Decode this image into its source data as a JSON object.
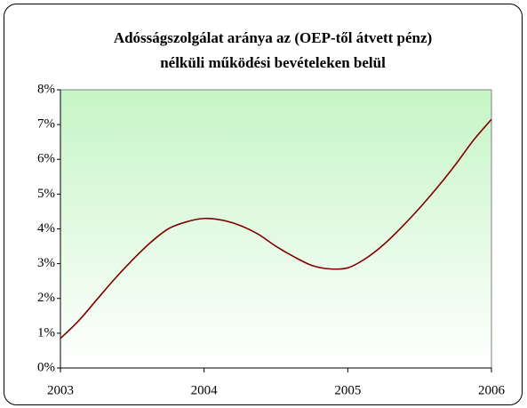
{
  "chart_data": {
    "type": "line",
    "title": [
      "Adósságszolgálat aránya az (OEP-től átvett pénz)",
      "nélküli működési bevételeken belül"
    ],
    "x": [
      2003,
      2003.125,
      2003.25,
      2003.375,
      2003.5,
      2003.625,
      2003.75,
      2003.875,
      2004,
      2004.125,
      2004.25,
      2004.375,
      2004.5,
      2004.625,
      2004.75,
      2004.875,
      2005,
      2005.125,
      2005.25,
      2005.375,
      2005.5,
      2005.625,
      2005.75,
      2005.875,
      2006
    ],
    "series": [
      {
        "color": "#800000",
        "values": [
          0.85,
          1.35,
          1.95,
          2.55,
          3.1,
          3.6,
          4.0,
          4.2,
          4.3,
          4.25,
          4.1,
          3.85,
          3.5,
          3.2,
          2.95,
          2.85,
          2.88,
          3.15,
          3.55,
          4.05,
          4.6,
          5.2,
          5.85,
          6.55,
          7.15
        ]
      }
    ],
    "xlim": [
      2003,
      2006
    ],
    "xticks": [
      2003,
      2004,
      2005,
      2006
    ],
    "ylim": [
      0,
      8
    ],
    "yticks": [
      {
        "value": 0,
        "label": "0%"
      },
      {
        "value": 1,
        "label": "1%"
      },
      {
        "value": 2,
        "label": "2%"
      },
      {
        "value": 3,
        "label": "3%"
      },
      {
        "value": 4,
        "label": "4%"
      },
      {
        "value": 5,
        "label": "5%"
      },
      {
        "value": 6,
        "label": "6%"
      },
      {
        "value": 7,
        "label": "7%"
      },
      {
        "value": 8,
        "label": "8%"
      }
    ],
    "grid": false,
    "plot_gradient": [
      "#c6f5c6",
      "#ffffff"
    ]
  }
}
